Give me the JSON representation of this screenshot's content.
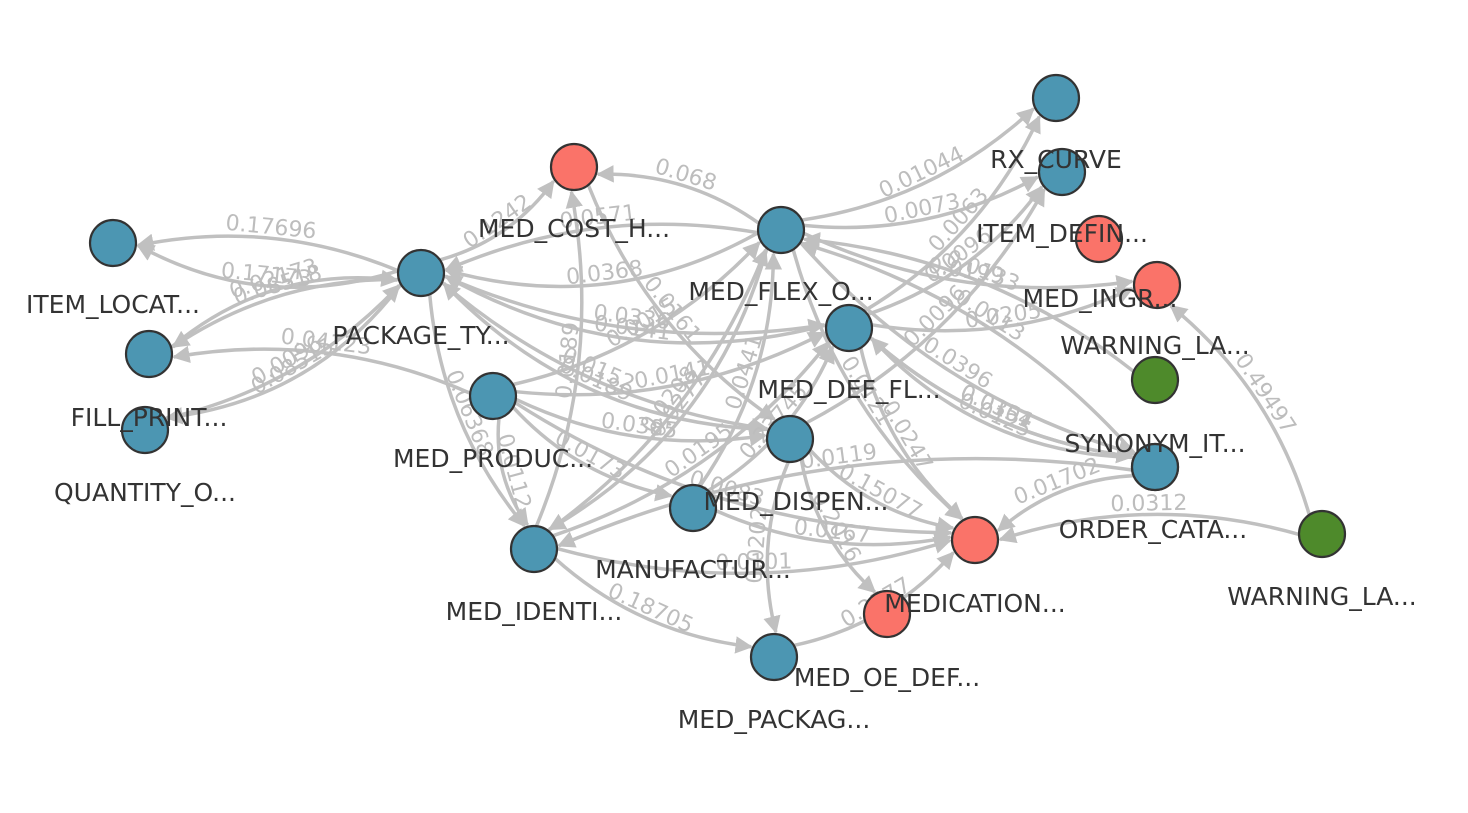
{
  "colors": {
    "table": "#4c96b2",
    "view": "#fa7369",
    "other": "#4e8a2b",
    "edge": "#c0c0c0",
    "edge_label": "#bdbdbd",
    "node_label": "#333333"
  },
  "nodes": [
    {
      "id": "item_locat",
      "label": "ITEM_LOCAT...",
      "kind": "table"
    },
    {
      "id": "fill_print",
      "label": "FILL_PRINT...",
      "kind": "table"
    },
    {
      "id": "quantity_o",
      "label": "QUANTITY_O...",
      "kind": "table"
    },
    {
      "id": "package_ty",
      "label": "PACKAGE_TY...",
      "kind": "table"
    },
    {
      "id": "med_cost_h",
      "label": "MED_COST_H...",
      "kind": "view"
    },
    {
      "id": "med_produc",
      "label": "MED_PRODUC...",
      "kind": "table"
    },
    {
      "id": "med_identi",
      "label": "MED_IDENTI...",
      "kind": "table"
    },
    {
      "id": "manufactur",
      "label": "MANUFACTUR...",
      "kind": "table"
    },
    {
      "id": "med_packag",
      "label": "MED_PACKAG...",
      "kind": "table"
    },
    {
      "id": "med_flex_o",
      "label": "MED_FLEX_O...",
      "kind": "table"
    },
    {
      "id": "med_def_fl",
      "label": "MED_DEF_FL...",
      "kind": "table"
    },
    {
      "id": "med_dispen",
      "label": "MED_DISPEN...",
      "kind": "table"
    },
    {
      "id": "med_oe_def",
      "label": "MED_OE_DEF...",
      "kind": "view"
    },
    {
      "id": "medication",
      "label": "MEDICATION...",
      "kind": "view"
    },
    {
      "id": "rx_curve",
      "label": "RX_CURVE",
      "kind": "table"
    },
    {
      "id": "item_defin",
      "label": "ITEM_DEFIN...",
      "kind": "table"
    },
    {
      "id": "item_defin_v",
      "label": "",
      "kind": "view"
    },
    {
      "id": "med_ingr",
      "label": "MED_INGR...",
      "kind": "view"
    },
    {
      "id": "warning_la_1",
      "label": "WARNING_LA...",
      "kind": "other"
    },
    {
      "id": "synonym_it",
      "label": "SYNONYM_IT...",
      "kind": "table"
    },
    {
      "id": "order_cata",
      "label": "ORDER_CATA...",
      "kind": "table"
    },
    {
      "id": "warning_la_2",
      "label": "WARNING_LA...",
      "kind": "other"
    }
  ],
  "edges": [
    {
      "from": "package_ty",
      "to": "item_locat",
      "label": "0.17696"
    },
    {
      "from": "package_ty",
      "to": "item_locat",
      "label": "0.17173"
    },
    {
      "from": "quantity_o",
      "to": "package_ty",
      "label": "0.0096"
    },
    {
      "from": "package_ty",
      "to": "fill_print",
      "label": "0.08518"
    },
    {
      "from": "fill_print",
      "to": "package_ty",
      "label": "0.02173"
    },
    {
      "from": "package_ty",
      "to": "quantity_o",
      "label": "0.08515"
    },
    {
      "from": "med_produc",
      "to": "fill_print",
      "label": "0.04123"
    },
    {
      "from": "package_ty",
      "to": "med_cost_h",
      "label": "0.1242"
    },
    {
      "from": "med_flex_o",
      "to": "med_cost_h",
      "label": "0.068"
    },
    {
      "from": "med_flex_o",
      "to": "package_ty",
      "label": "0.0571"
    },
    {
      "from": "med_flex_o",
      "to": "package_ty",
      "label": "0.0368"
    },
    {
      "from": "med_flex_o",
      "to": "rx_curve",
      "label": "0.01044"
    },
    {
      "from": "med_flex_o",
      "to": "item_defin",
      "label": "0.0073"
    },
    {
      "from": "med_def_fl",
      "to": "rx_curve",
      "label": "0.0063"
    },
    {
      "from": "med_def_fl",
      "to": "item_defin",
      "label": "0.0096"
    },
    {
      "from": "med_def_fl",
      "to": "med_ingr",
      "label": "0.0205"
    },
    {
      "from": "med_def_fl",
      "to": "synonym_it",
      "label": "0.0301"
    },
    {
      "from": "med_def_fl",
      "to": "medication",
      "label": "0.0247"
    },
    {
      "from": "med_dispen",
      "to": "medication",
      "label": "0.15077"
    },
    {
      "from": "med_dispen",
      "to": "med_oe_def",
      "label": "0.2016"
    },
    {
      "from": "order_cata",
      "to": "medication",
      "label": "0.01702"
    },
    {
      "from": "warning_la_2",
      "to": "medication",
      "label": "0.0312"
    },
    {
      "from": "warning_la_2",
      "to": "med_ingr",
      "label": "0.49497"
    },
    {
      "from": "med_identi",
      "to": "med_packag",
      "label": "0.18705"
    },
    {
      "from": "manufactur",
      "to": "med_def_fl",
      "label": "0.23745"
    },
    {
      "from": "med_packag",
      "to": "medication",
      "label": "0.2577"
    },
    {
      "from": "package_ty",
      "to": "med_identi",
      "label": "0.06368"
    },
    {
      "from": "med_identi",
      "to": "med_cost_h",
      "label": "0.0189"
    },
    {
      "from": "med_produc",
      "to": "med_flex_o",
      "label": "0.0015"
    },
    {
      "from": "med_identi",
      "to": "med_def_fl",
      "label": "0.0195"
    },
    {
      "from": "med_produc",
      "to": "medication",
      "label": "0.0083"
    },
    {
      "from": "manufactur",
      "to": "med_flex_o",
      "label": "0.0441"
    },
    {
      "from": "med_identi",
      "to": "med_flex_o",
      "label": "0.0208"
    },
    {
      "from": "med_produc",
      "to": "med_def_fl",
      "label": "0.0141"
    },
    {
      "from": "med_produc",
      "to": "med_dispen",
      "label": "0.0385"
    },
    {
      "from": "package_ty",
      "to": "med_def_fl",
      "label": "0.0336"
    },
    {
      "from": "package_ty",
      "to": "med_dispen",
      "label": "0.0152"
    },
    {
      "from": "med_flex_o",
      "to": "med_identi",
      "label": "0.0277"
    },
    {
      "from": "med_flex_o",
      "to": "med_ingr",
      "label": "0.0199"
    },
    {
      "from": "med_flex_o",
      "to": "synonym_it",
      "label": "0.0396"
    },
    {
      "from": "med_def_fl",
      "to": "order_cata",
      "label": "0.0154"
    },
    {
      "from": "med_flex_o",
      "to": "medication",
      "label": "0.0121"
    },
    {
      "from": "med_dispen",
      "to": "item_defin",
      "label": "0.0096"
    },
    {
      "from": "med_dispen",
      "to": "package_ty",
      "label": "0.0189"
    },
    {
      "from": "manufactur",
      "to": "medication",
      "label": "0.0167"
    },
    {
      "from": "med_identi",
      "to": "medication",
      "label": "0.0101"
    },
    {
      "from": "med_produc",
      "to": "med_identi",
      "label": "0.0112"
    },
    {
      "from": "med_produc",
      "to": "manufactur",
      "label": "0.0173"
    },
    {
      "from": "med_dispen",
      "to": "med_packag",
      "label": "0.0202"
    },
    {
      "from": "order_cata",
      "to": "med_flex_o",
      "label": "0.0113"
    },
    {
      "from": "synonym_it",
      "to": "med_def_fl",
      "label": "0.0125"
    },
    {
      "from": "order_cata",
      "to": "med_identi",
      "label": "0.0119"
    },
    {
      "from": "warning_la_1",
      "to": "med_flex_o",
      "label": "0.0133"
    },
    {
      "from": "med_def_fl",
      "to": "package_ty",
      "label": "0.0141"
    },
    {
      "from": "med_cost_h",
      "to": "med_dispen",
      "label": "0.0161"
    }
  ]
}
